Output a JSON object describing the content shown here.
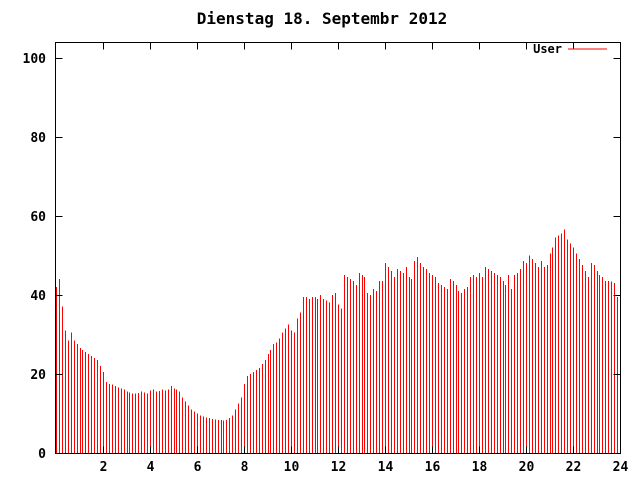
{
  "title": "Dienstag 18. Septembr 2012",
  "colors": {
    "background": "#ffffff",
    "axis": "#000000",
    "text": "#000000",
    "series_user": "#ff0000"
  },
  "legend": {
    "position": "top-right",
    "entries": [
      {
        "label": "User",
        "color": "#ff0000",
        "sample": "line"
      }
    ]
  },
  "chart_data": {
    "type": "bar",
    "subtype": "impulses",
    "title": "Dienstag 18. Septembr 2012",
    "xlabel": "",
    "ylabel": "",
    "x_unit": "hour-of-day",
    "x_start_hour": 0,
    "x_step_hours": 0.125,
    "xlim": [
      0,
      24
    ],
    "ylim": [
      0,
      104
    ],
    "xticks": [
      2,
      4,
      6,
      8,
      10,
      12,
      14,
      16,
      18,
      20,
      22,
      24
    ],
    "yticks": [
      0,
      20,
      40,
      60,
      80,
      100
    ],
    "grid": false,
    "legend_position": "top-right",
    "series": [
      {
        "name": "User",
        "color": "#ff0000",
        "values": [
          42,
          44,
          37,
          31,
          28.5,
          30.5,
          28.5,
          27.5,
          26.5,
          26,
          25.5,
          25,
          24.5,
          24,
          23.5,
          22,
          20.5,
          18,
          17.5,
          17.3,
          17,
          16.5,
          16.3,
          16,
          15.5,
          15.3,
          15,
          15,
          15.2,
          15.5,
          15.3,
          15,
          15.8,
          16,
          15.5,
          15.7,
          16,
          15.8,
          16,
          17,
          16.3,
          16,
          15.5,
          14,
          13,
          12,
          11,
          10.5,
          10,
          9.5,
          9.2,
          9,
          8.8,
          8.6,
          8.5,
          8.4,
          8.3,
          8.2,
          8.4,
          8.8,
          9.5,
          11,
          12.5,
          14,
          17.5,
          19.5,
          20,
          20.5,
          21,
          21.5,
          22.5,
          23.5,
          25,
          26,
          27.5,
          28,
          29,
          30.5,
          31.5,
          32.5,
          31,
          30.5,
          34,
          35.5,
          39.5,
          39.5,
          39,
          39.5,
          39.5,
          39,
          40,
          39,
          38.5,
          38,
          40,
          40.5,
          37.5,
          36.5,
          45,
          44.5,
          44,
          43.5,
          42.5,
          45.5,
          45,
          44.5,
          40.5,
          40,
          41.5,
          41,
          43.5,
          43.5,
          48,
          47,
          46,
          44.5,
          46.5,
          46,
          45.5,
          47,
          44.5,
          44,
          48.5,
          49.5,
          48,
          47,
          46.5,
          45.5,
          45,
          44.5,
          43,
          42.5,
          42,
          41.5,
          44,
          43.5,
          42.5,
          41,
          40.5,
          41.5,
          42,
          44.5,
          45,
          44.5,
          45.5,
          44.5,
          47,
          46.5,
          46,
          45.5,
          45,
          44.5,
          43.5,
          42.5,
          45,
          41.5,
          45,
          45.5,
          46.5,
          48.5,
          48,
          50,
          49,
          48,
          47,
          48.5,
          47,
          47.5,
          50.5,
          52,
          54.5,
          55,
          55.5,
          56.5,
          54,
          53,
          52,
          50.5,
          49,
          47.5,
          46,
          44.5,
          48,
          47.5,
          46,
          45,
          44.5,
          43.5,
          43.5,
          43.3,
          43,
          39.5,
          35
        ]
      }
    ]
  }
}
